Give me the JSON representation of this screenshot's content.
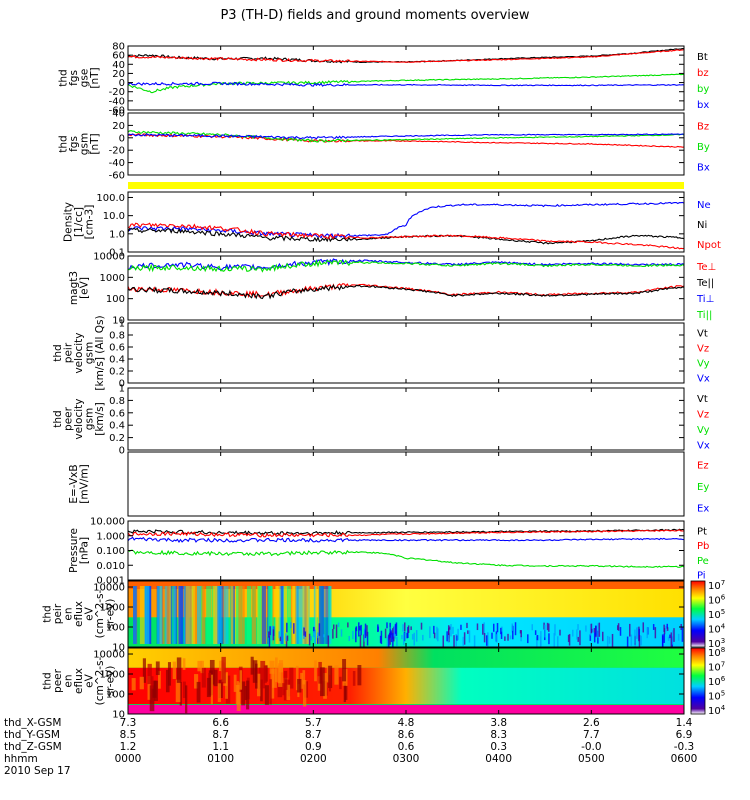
{
  "title": "P3 (TH-D) fields and ground moments overview",
  "colors": {
    "black": "#000000",
    "red": "#ff0000",
    "green": "#00e000",
    "blue": "#0000ff",
    "yellow": "#ffff00"
  },
  "chart_data": [
    {
      "type": "line",
      "name": "thd fgs gse",
      "ylabel": [
        "thd",
        "fgs",
        "gse",
        "[nT]"
      ],
      "ylim": [
        -60,
        80
      ],
      "yticks": [
        -60,
        -40,
        -20,
        0,
        20,
        40,
        60,
        80
      ],
      "ylog": false,
      "series": [
        {
          "name": "Bt",
          "color": "black",
          "x": [
            0,
            0.25,
            0.5,
            1,
            1.5,
            2,
            2.5,
            3,
            3.5,
            4,
            4.5,
            5,
            5.5,
            6
          ],
          "values": [
            58,
            60,
            55,
            52,
            53,
            48,
            45,
            45,
            48,
            52,
            55,
            58,
            65,
            75
          ]
        },
        {
          "name": "bz",
          "color": "red",
          "x": [
            0,
            1,
            2,
            3,
            4,
            5,
            6
          ],
          "values": [
            57,
            52,
            48,
            45,
            50,
            56,
            72
          ]
        },
        {
          "name": "by",
          "color": "green",
          "x": [
            0,
            0.25,
            0.5,
            1,
            2,
            3,
            4,
            5,
            6
          ],
          "values": [
            -5,
            -20,
            -10,
            -2,
            0,
            5,
            8,
            12,
            18
          ]
        },
        {
          "name": "bx",
          "color": "blue",
          "x": [
            0,
            1,
            2,
            3,
            4,
            5,
            6
          ],
          "values": [
            -3,
            -2,
            -5,
            -5,
            -6,
            -6,
            -5
          ]
        }
      ]
    },
    {
      "type": "line",
      "name": "thd fgs gsm",
      "ylabel": [
        "thd",
        "fgs",
        "gsm",
        "[nT]"
      ],
      "ylim": [
        -60,
        40
      ],
      "yticks": [
        -60,
        -40,
        -20,
        0,
        20,
        40
      ],
      "ylog": false,
      "series": [
        {
          "name": "Bz",
          "color": "red",
          "x": [
            0,
            1,
            2,
            3,
            4,
            5,
            6
          ],
          "values": [
            5,
            2,
            -5,
            -5,
            -8,
            -10,
            -15
          ]
        },
        {
          "name": "By",
          "color": "green",
          "x": [
            0,
            1,
            2,
            3,
            4,
            5,
            6
          ],
          "values": [
            10,
            5,
            -5,
            -3,
            0,
            2,
            5
          ]
        },
        {
          "name": "Bx",
          "color": "blue",
          "x": [
            0,
            1,
            2,
            3,
            4,
            5,
            6
          ],
          "values": [
            5,
            3,
            0,
            3,
            5,
            5,
            6
          ]
        }
      ]
    },
    {
      "type": "line",
      "name": "Density",
      "ylabel": [
        "Density",
        "[1/cc]",
        "[cm-3]"
      ],
      "ylim": [
        0.1,
        200
      ],
      "yticks": [
        0.1,
        1.0,
        10.0,
        100.0
      ],
      "ylog": true,
      "series": [
        {
          "name": "Ne",
          "color": "blue",
          "x": [
            0,
            0.5,
            1,
            1.5,
            2,
            2.5,
            2.8,
            3,
            3.3,
            3.6,
            4,
            4.5,
            5,
            5.5,
            6
          ],
          "values": [
            2,
            2,
            1.5,
            1,
            0.8,
            0.8,
            0.9,
            3,
            30,
            40,
            40,
            35,
            40,
            45,
            50
          ]
        },
        {
          "name": "Ni",
          "color": "black",
          "x": [
            0,
            0.5,
            1,
            1.5,
            2,
            2.5,
            3,
            3.5,
            4,
            4.5,
            5,
            5.5,
            6
          ],
          "values": [
            1.5,
            1.5,
            1,
            0.6,
            0.5,
            0.5,
            0.7,
            0.8,
            0.5,
            0.3,
            0.4,
            0.8,
            0.6
          ]
        },
        {
          "name": "Npot",
          "color": "red",
          "x": [
            0,
            0.5,
            1,
            1.5,
            2,
            2.5,
            3,
            3.5,
            4,
            4.5,
            5,
            5.5,
            6
          ],
          "values": [
            3,
            3,
            2,
            1,
            0.8,
            0.6,
            0.7,
            0.8,
            0.6,
            0.4,
            0.35,
            0.25,
            0.15
          ]
        }
      ]
    },
    {
      "type": "line",
      "name": "magt3",
      "ylabel": [
        "magt3",
        "[eV]"
      ],
      "ylim": [
        10,
        10000
      ],
      "yticks": [
        10,
        100,
        1000,
        10000
      ],
      "ylog": true,
      "series": [
        {
          "name": "Te⊥",
          "color": "red",
          "x": [
            0,
            0.5,
            1,
            1.5,
            2,
            2.5,
            3,
            3.5,
            4,
            4.5,
            5,
            5.5,
            6
          ],
          "values": [
            300,
            250,
            200,
            150,
            300,
            450,
            300,
            150,
            200,
            150,
            180,
            200,
            400
          ]
        },
        {
          "name": "Te||",
          "color": "black",
          "x": [
            0,
            0.5,
            1,
            1.5,
            2,
            2.5,
            3,
            3.5,
            4,
            4.5,
            5,
            5.5,
            6
          ],
          "values": [
            280,
            230,
            180,
            130,
            280,
            400,
            280,
            140,
            180,
            140,
            160,
            180,
            350
          ]
        },
        {
          "name": "Ti⊥",
          "color": "blue",
          "x": [
            0,
            0.5,
            1,
            1.5,
            2,
            2.5,
            3,
            3.5,
            4,
            4.5,
            5,
            5.5,
            6
          ],
          "values": [
            3000,
            4000,
            3000,
            3000,
            5000,
            6000,
            5000,
            4000,
            5000,
            4000,
            4500,
            4000,
            4000
          ]
        },
        {
          "name": "Ti||",
          "color": "green",
          "x": [
            0,
            0.5,
            1,
            1.5,
            2,
            2.5,
            3,
            3.5,
            4,
            4.5,
            5,
            5.5,
            6
          ],
          "values": [
            2500,
            3000,
            2500,
            2500,
            4500,
            5000,
            4500,
            3500,
            4500,
            3500,
            4000,
            3500,
            3800
          ]
        }
      ]
    },
    {
      "type": "line",
      "name": "thd peir velocity gsm",
      "ylabel": [
        "thd",
        "peir",
        "velocity",
        "gsm",
        "[km/s] (All Qs)"
      ],
      "ylim": [
        0,
        1
      ],
      "yticks": [
        0.0,
        0.2,
        0.4,
        0.6,
        0.8,
        1.0
      ],
      "ylog": false,
      "series": [
        {
          "name": "Vt",
          "color": "black"
        },
        {
          "name": "Vz",
          "color": "red"
        },
        {
          "name": "Vy",
          "color": "green"
        },
        {
          "name": "Vx",
          "color": "blue"
        }
      ]
    },
    {
      "type": "line",
      "name": "thd peer velocity gsm",
      "ylabel": [
        "thd",
        "peer",
        "velocity",
        "gsm",
        "[km/s]"
      ],
      "ylim": [
        0,
        1
      ],
      "yticks": [
        0.0,
        0.2,
        0.4,
        0.6,
        0.8,
        1.0
      ],
      "ylog": false,
      "series": [
        {
          "name": "Vt",
          "color": "black"
        },
        {
          "name": "Vz",
          "color": "red"
        },
        {
          "name": "Vy",
          "color": "green"
        },
        {
          "name": "Vx",
          "color": "blue"
        }
      ]
    },
    {
      "type": "line",
      "name": "E=-VxB",
      "ylabel": [
        "E=-VxB",
        "[mV/m]"
      ],
      "ylim": [
        0,
        1
      ],
      "yticks": [],
      "ylog": false,
      "series": [
        {
          "name": "Ez",
          "color": "red"
        },
        {
          "name": "Ey",
          "color": "green"
        },
        {
          "name": "Ex",
          "color": "blue"
        }
      ]
    },
    {
      "type": "line",
      "name": "Pressure",
      "ylabel": [
        "Pressure",
        "[nPa]"
      ],
      "ylim": [
        0.001,
        10
      ],
      "yticks": [
        0.001,
        0.01,
        0.1,
        1.0,
        10.0
      ],
      "ylog": true,
      "series": [
        {
          "name": "Pt",
          "color": "black",
          "x": [
            0,
            0.5,
            1,
            1.5,
            2,
            2.5,
            3,
            3.5,
            4,
            4.5,
            5,
            5.5,
            6
          ],
          "values": [
            2,
            1.8,
            1.6,
            1.5,
            1.5,
            1.6,
            1.7,
            1.8,
            1.9,
            2,
            2.1,
            2.3,
            2.5
          ]
        },
        {
          "name": "Pb",
          "color": "red",
          "x": [
            0,
            0.5,
            1,
            1.5,
            2,
            2.5,
            3,
            3.5,
            4,
            4.5,
            5,
            5.5,
            6
          ],
          "values": [
            1.3,
            1.4,
            1.2,
            1.1,
            1.1,
            1.1,
            1.3,
            1.5,
            1.7,
            1.8,
            1.9,
            2.1,
            2.3
          ]
        },
        {
          "name": "Pe",
          "color": "green",
          "x": [
            0,
            0.5,
            1,
            1.5,
            2,
            2.5,
            2.8,
            3,
            3.5,
            4,
            4.5,
            5,
            5.5,
            6
          ],
          "values": [
            0.08,
            0.07,
            0.06,
            0.06,
            0.07,
            0.08,
            0.06,
            0.03,
            0.015,
            0.01,
            0.009,
            0.009,
            0.008,
            0.008
          ]
        },
        {
          "name": "Pi",
          "color": "blue",
          "x": [
            0,
            0.5,
            1,
            1.5,
            2,
            2.5,
            3,
            3.5,
            4,
            4.5,
            5,
            5.5,
            6
          ],
          "values": [
            0.6,
            0.5,
            0.5,
            0.5,
            0.5,
            0.5,
            0.5,
            0.5,
            0.5,
            0.5,
            0.55,
            0.6,
            0.6
          ]
        }
      ]
    },
    {
      "type": "heatmap",
      "name": "thd peir en eflux",
      "ylabel": [
        "thd",
        "peir",
        "en",
        "eflux",
        "eV",
        "(cm^2-s-",
        "sr-eV)"
      ],
      "ylim": [
        10,
        20000
      ],
      "yticks": [
        10,
        100,
        1000,
        10000
      ],
      "ylog": true,
      "colorbar": {
        "ticks": [
          "10^3",
          "10^4",
          "10^5",
          "10^6",
          "10^7"
        ]
      }
    },
    {
      "type": "heatmap",
      "name": "thd peer en eflux",
      "ylabel": [
        "thd",
        "peer",
        "en",
        "eflux",
        "eV",
        "(cm^2-s-",
        "sr-eV)"
      ],
      "ylim": [
        10,
        20000
      ],
      "yticks": [
        10,
        100,
        1000,
        10000
      ],
      "ylog": true,
      "colorbar": {
        "ticks": [
          "10^4",
          "10^5",
          "10^6",
          "10^7",
          "10^8"
        ]
      }
    }
  ],
  "ephemeris": {
    "labels": [
      "thd_X-GSM",
      "thd_Y-GSM",
      "thd_Z-GSM",
      "hhmm",
      "2010 Sep 17"
    ],
    "columns": [
      [
        "7.3",
        "8.5",
        "1.2",
        "0000"
      ],
      [
        "6.6",
        "8.7",
        "1.1",
        "0100"
      ],
      [
        "5.7",
        "8.7",
        "0.9",
        "0200"
      ],
      [
        "4.8",
        "8.6",
        "0.6",
        "0300"
      ],
      [
        "3.8",
        "8.3",
        "0.3",
        "0400"
      ],
      [
        "2.6",
        "7.7",
        "-0.0",
        "0500"
      ],
      [
        "1.4",
        "6.9",
        "-0.3",
        "0600"
      ]
    ]
  }
}
